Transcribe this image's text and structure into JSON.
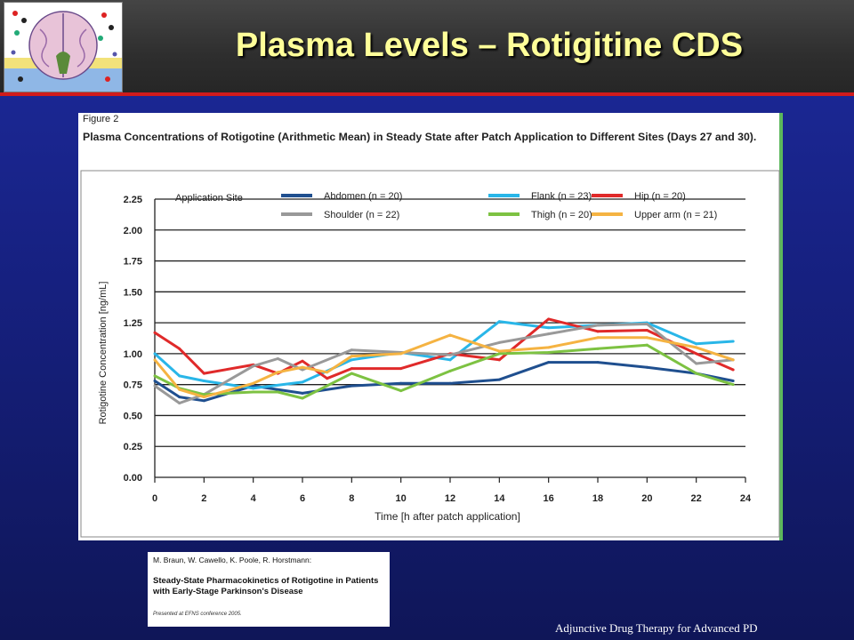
{
  "slide": {
    "title": "Plasma Levels – Rotigitine CDS",
    "footer": "Adjunctive Drug Therapy for Advanced PD",
    "logo_icon": "brain-molecules-icon"
  },
  "figure": {
    "label": "Figure 2",
    "caption": "Plasma Concentrations of Rotigotine (Arithmetic Mean) in Steady State after Patch Application to Different Sites (Days 27 and 30)."
  },
  "citation": {
    "authors": "M. Braun, W. Cawello, K. Poole, R. Horstmann:",
    "title": "Steady-State Pharmacokinetics of Rotigotine in Patients with Early-Stage Parkinson's Disease",
    "note": "Presented at EFNS conference 2005."
  },
  "chart_data": {
    "type": "line",
    "title": "",
    "xlabel": "Time [h after patch application]",
    "ylabel": "Rotigotine Concentration [ng/mL]",
    "xlim": [
      0,
      24
    ],
    "ylim": [
      0,
      2.25
    ],
    "x_ticks": [
      "0",
      "2",
      "4",
      "6",
      "8",
      "10",
      "12",
      "14",
      "16",
      "18",
      "20",
      "22",
      "24"
    ],
    "y_ticks": [
      "0.00",
      "0.25",
      "0.50",
      "0.75",
      "1.00",
      "1.25",
      "1.50",
      "1.75",
      "2.00",
      "2.25"
    ],
    "grid": "horizontal",
    "legend_title": "Application Site",
    "legend_position": "top",
    "series": [
      {
        "name": "Abdomen (n = 20)",
        "color": "#1f4f8f",
        "x": [
          0,
          1,
          2,
          4,
          6,
          8,
          10,
          12,
          14,
          16,
          18,
          20,
          22,
          23.5
        ],
        "y": [
          0.78,
          0.65,
          0.62,
          0.74,
          0.68,
          0.74,
          0.76,
          0.76,
          0.79,
          0.93,
          0.93,
          0.89,
          0.84,
          0.78
        ]
      },
      {
        "name": "Flank (n = 23)",
        "color": "#29b6e8",
        "x": [
          0,
          1,
          2,
          4,
          6,
          8,
          10,
          12,
          14,
          16,
          18,
          20,
          22,
          23.5
        ],
        "y": [
          1.0,
          0.82,
          0.78,
          0.72,
          0.77,
          0.95,
          1.01,
          0.95,
          1.26,
          1.21,
          1.23,
          1.25,
          1.08,
          1.1
        ]
      },
      {
        "name": "Hip (n = 20)",
        "color": "#e02a2a",
        "x": [
          0,
          1,
          2,
          4,
          5,
          6,
          7,
          8,
          10,
          12,
          14,
          16,
          18,
          20,
          22,
          23.5
        ],
        "y": [
          1.17,
          1.04,
          0.84,
          0.91,
          0.84,
          0.94,
          0.8,
          0.88,
          0.88,
          1.0,
          0.95,
          1.28,
          1.18,
          1.19,
          1.0,
          0.87
        ]
      },
      {
        "name": "Shoulder (n = 22)",
        "color": "#999999",
        "x": [
          0,
          1,
          2,
          4,
          5,
          6,
          8,
          10,
          12,
          14,
          16,
          18,
          20,
          22,
          23.5
        ],
        "y": [
          0.74,
          0.6,
          0.67,
          0.9,
          0.96,
          0.87,
          1.03,
          1.01,
          0.99,
          1.09,
          1.16,
          1.23,
          1.24,
          0.92,
          0.95
        ]
      },
      {
        "name": "Thigh (n = 20)",
        "color": "#7dc242",
        "x": [
          0,
          1,
          2,
          4,
          5,
          6,
          8,
          10,
          12,
          14,
          16,
          18,
          20,
          22,
          23.5
        ],
        "y": [
          0.82,
          0.72,
          0.67,
          0.69,
          0.69,
          0.64,
          0.84,
          0.7,
          0.86,
          1.0,
          1.01,
          1.04,
          1.07,
          0.84,
          0.75
        ]
      },
      {
        "name": "Upper arm (n = 21)",
        "color": "#f5b342",
        "x": [
          0,
          1,
          2,
          4,
          5,
          6,
          7,
          8,
          10,
          12,
          14,
          16,
          18,
          20,
          22,
          23.5
        ],
        "y": [
          0.95,
          0.71,
          0.65,
          0.76,
          0.85,
          0.89,
          0.85,
          0.98,
          1.0,
          1.15,
          1.02,
          1.05,
          1.13,
          1.13,
          1.05,
          0.95
        ]
      }
    ]
  }
}
